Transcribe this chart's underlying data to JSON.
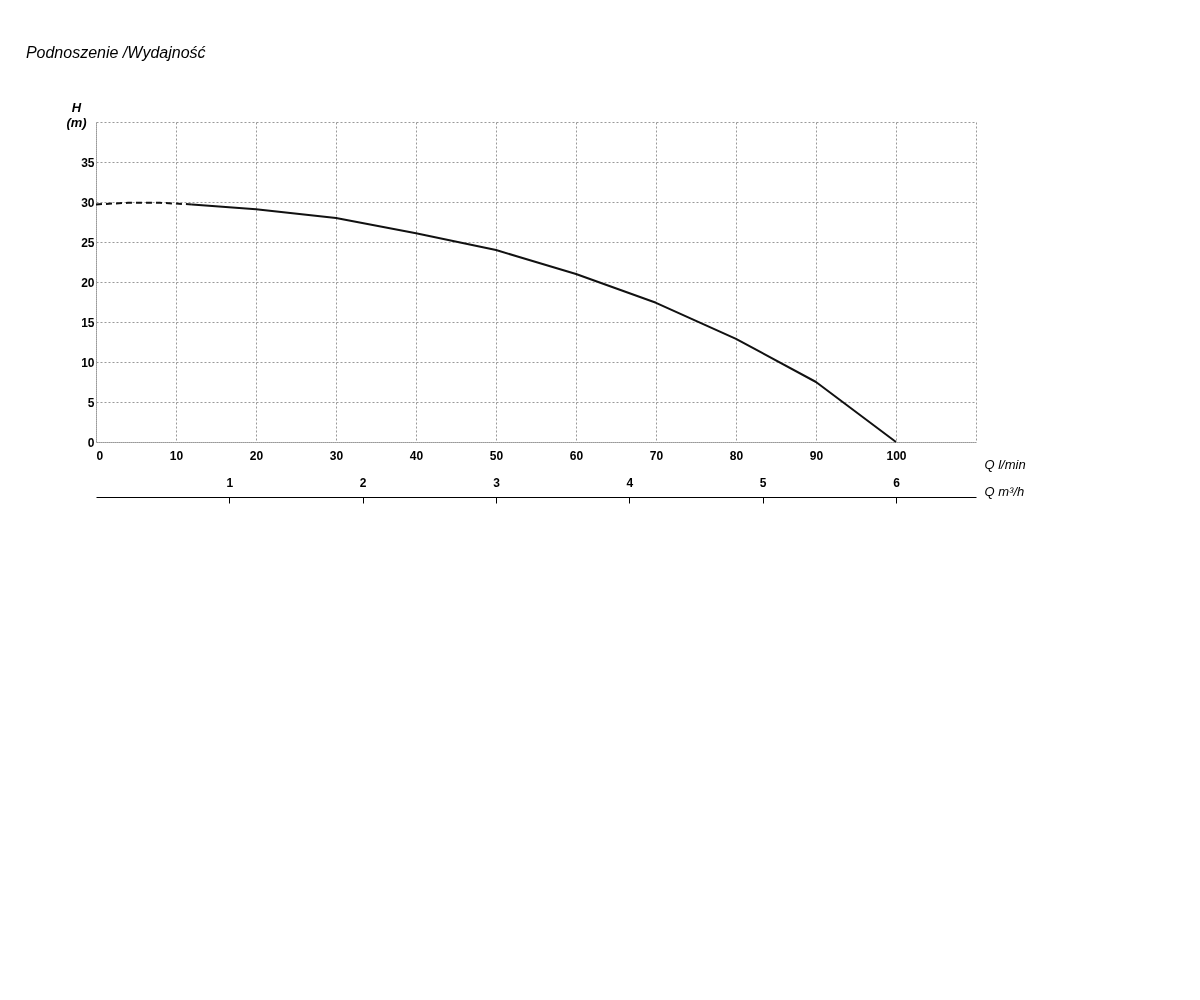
{
  "chart_data": {
    "type": "line",
    "title": "Podnoszenie /Wydajność",
    "ylabel": "H\n(m)",
    "xlabel": "Q l/min",
    "x2label": "Q m³/h",
    "xlim": [
      0,
      110
    ],
    "xticks": [
      0,
      10,
      20,
      30,
      40,
      50,
      60,
      70,
      80,
      90,
      100
    ],
    "ylim": [
      0,
      40
    ],
    "yticks": [
      0,
      5,
      10,
      15,
      20,
      25,
      30,
      35
    ],
    "x2lim": [
      0,
      6.6
    ],
    "x2ticks": [
      1,
      2,
      3,
      4,
      5,
      6
    ],
    "grid": true,
    "series": [
      {
        "color": "#111111",
        "line_style": "dashed",
        "x": [
          0,
          4,
          8,
          12
        ],
        "values": [
          29.7,
          29.9,
          29.9,
          29.7
        ]
      },
      {
        "color": "#111111",
        "line_style": "solid",
        "x": [
          12,
          20,
          30,
          40,
          50,
          60,
          70,
          80,
          90,
          100
        ],
        "values": [
          29.7,
          29.1,
          28.0,
          26.1,
          24.0,
          21.0,
          17.4,
          12.9,
          7.5,
          0
        ]
      }
    ]
  }
}
